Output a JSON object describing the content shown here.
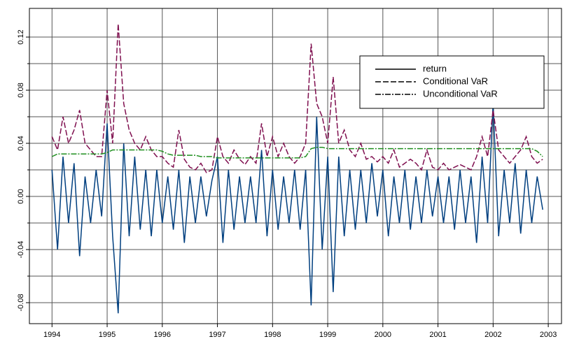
{
  "chart_data": {
    "type": "line",
    "x": [
      1994,
      1994.1,
      1994.2,
      1994.3,
      1994.4,
      1994.5,
      1994.6,
      1994.7,
      1994.8,
      1994.9,
      1995,
      1995.1,
      1995.2,
      1995.3,
      1995.4,
      1995.5,
      1995.6,
      1995.7,
      1995.8,
      1995.9,
      1996,
      1996.1,
      1996.2,
      1996.3,
      1996.4,
      1996.5,
      1996.6,
      1996.7,
      1996.8,
      1996.9,
      1997,
      1997.1,
      1997.2,
      1997.3,
      1997.4,
      1997.5,
      1997.6,
      1997.7,
      1997.8,
      1997.9,
      1998,
      1998.1,
      1998.2,
      1998.3,
      1998.4,
      1998.5,
      1998.6,
      1998.7,
      1998.8,
      1998.9,
      1999,
      1999.1,
      1999.2,
      1999.3,
      1999.4,
      1999.5,
      1999.6,
      1999.7,
      1999.8,
      1999.9,
      2000,
      2000.1,
      2000.2,
      2000.3,
      2000.4,
      2000.5,
      2000.6,
      2000.7,
      2000.8,
      2000.9,
      2001,
      2001.1,
      2001.2,
      2001.3,
      2001.4,
      2001.5,
      2001.6,
      2001.7,
      2001.8,
      2001.9,
      2002,
      2002.1,
      2002.2,
      2002.3,
      2002.4,
      2002.5,
      2002.6,
      2002.7,
      2002.8,
      2002.9
    ],
    "series": [
      {
        "name": "return",
        "color": "#003f7f",
        "style": "solid",
        "values": [
          0.02,
          -0.04,
          0.03,
          -0.02,
          0.025,
          -0.045,
          0.015,
          -0.02,
          0.02,
          -0.015,
          0.055,
          -0.03,
          -0.088,
          0.04,
          -0.03,
          0.03,
          -0.025,
          0.02,
          -0.03,
          0.02,
          -0.02,
          0.015,
          -0.025,
          0.02,
          -0.035,
          0.015,
          -0.02,
          0.015,
          -0.015,
          0.012,
          0.03,
          -0.035,
          0.02,
          -0.025,
          0.015,
          -0.02,
          0.015,
          -0.02,
          0.035,
          -0.03,
          0.02,
          -0.025,
          0.015,
          -0.02,
          0.02,
          -0.025,
          0.02,
          -0.082,
          0.06,
          -0.04,
          0.03,
          -0.072,
          0.03,
          -0.03,
          0.02,
          -0.025,
          0.02,
          -0.02,
          0.025,
          -0.015,
          0.02,
          -0.03,
          0.015,
          -0.02,
          0.02,
          -0.025,
          0.015,
          -0.02,
          0.02,
          -0.015,
          0.015,
          -0.02,
          0.015,
          -0.025,
          0.02,
          -0.02,
          0.015,
          -0.035,
          0.03,
          -0.02,
          0.07,
          -0.03,
          0.02,
          -0.02,
          0.025,
          -0.028,
          0.02,
          -0.02,
          0.015,
          -0.01
        ]
      },
      {
        "name": "Conditional VaR",
        "color": "#7f0f4f",
        "style": "dashed",
        "values": [
          0.045,
          0.035,
          0.06,
          0.04,
          0.05,
          0.065,
          0.04,
          0.035,
          0.03,
          0.03,
          0.08,
          0.04,
          0.13,
          0.07,
          0.05,
          0.04,
          0.035,
          0.045,
          0.035,
          0.03,
          0.03,
          0.025,
          0.022,
          0.05,
          0.028,
          0.022,
          0.02,
          0.025,
          0.018,
          0.02,
          0.045,
          0.03,
          0.025,
          0.035,
          0.028,
          0.024,
          0.03,
          0.025,
          0.055,
          0.03,
          0.045,
          0.03,
          0.04,
          0.03,
          0.025,
          0.03,
          0.04,
          0.115,
          0.07,
          0.06,
          0.04,
          0.09,
          0.04,
          0.05,
          0.035,
          0.03,
          0.04,
          0.028,
          0.03,
          0.026,
          0.03,
          0.025,
          0.035,
          0.022,
          0.025,
          0.028,
          0.025,
          0.02,
          0.035,
          0.022,
          0.02,
          0.025,
          0.02,
          0.022,
          0.024,
          0.022,
          0.02,
          0.03,
          0.045,
          0.03,
          0.065,
          0.035,
          0.03,
          0.025,
          0.03,
          0.035,
          0.045,
          0.03,
          0.025,
          0.028
        ]
      },
      {
        "name": "Unconditional VaR",
        "color": "#1f8f1f",
        "style": "dashdot",
        "values": [
          0.03,
          0.032,
          0.032,
          0.032,
          0.032,
          0.032,
          0.032,
          0.032,
          0.032,
          0.032,
          0.033,
          0.035,
          0.035,
          0.035,
          0.035,
          0.035,
          0.035,
          0.035,
          0.035,
          0.035,
          0.034,
          0.032,
          0.031,
          0.031,
          0.031,
          0.031,
          0.031,
          0.03,
          0.03,
          0.03,
          0.029,
          0.029,
          0.029,
          0.029,
          0.029,
          0.029,
          0.029,
          0.029,
          0.029,
          0.029,
          0.029,
          0.029,
          0.029,
          0.029,
          0.029,
          0.029,
          0.03,
          0.036,
          0.037,
          0.037,
          0.036,
          0.036,
          0.036,
          0.036,
          0.036,
          0.036,
          0.036,
          0.036,
          0.036,
          0.036,
          0.036,
          0.036,
          0.036,
          0.036,
          0.036,
          0.036,
          0.036,
          0.036,
          0.036,
          0.036,
          0.036,
          0.036,
          0.036,
          0.036,
          0.036,
          0.036,
          0.036,
          0.036,
          0.036,
          0.036,
          0.036,
          0.036,
          0.036,
          0.036,
          0.036,
          0.036,
          0.036,
          0.036,
          0.034,
          0.03
        ]
      }
    ],
    "xlim": [
      1993.59,
      2003.24
    ],
    "xticks": [
      1994,
      1995,
      1996,
      1997,
      1998,
      1999,
      2000,
      2001,
      2002,
      2003
    ],
    "ylim": [
      -0.0958,
      0.1416
    ],
    "yticks": [
      {
        "value": -0.08,
        "label": "-0.08"
      },
      {
        "value": -0.04,
        "label": "-0.04"
      },
      {
        "value": 0,
        "label": "0.00"
      },
      {
        "value": 0.04,
        "label": "0.04"
      },
      {
        "value": 0.08,
        "label": "0.08"
      },
      {
        "value": 0.12,
        "label": "0.12"
      }
    ],
    "yminorticks": [
      -0.06,
      -0.02,
      0.02,
      0.06,
      0.1
    ],
    "grid": true,
    "legend": "upper right"
  }
}
